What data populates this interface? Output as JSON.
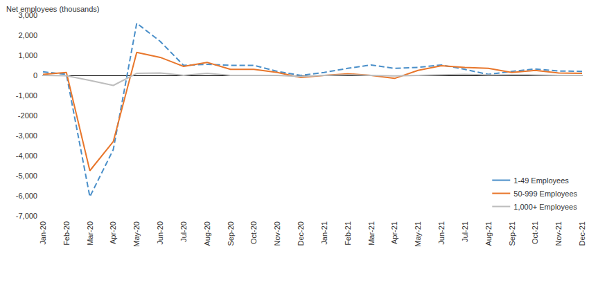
{
  "chart_data": {
    "type": "line",
    "y_label": "Net employees (thousands)",
    "categories": [
      "Jan-20",
      "Feb-20",
      "Mar-20",
      "Apr-20",
      "May-20",
      "Jun-20",
      "Jul-20",
      "Aug-20",
      "Sep-20",
      "Oct-20",
      "Nov-20",
      "Dec-20",
      "Jan-21",
      "Feb-21",
      "Mar-21",
      "Apr-21",
      "May-21",
      "Jun-21",
      "Jul-21",
      "Aug-21",
      "Sep-21",
      "Oct-21",
      "Nov-21",
      "Dec-21"
    ],
    "series": [
      {
        "name": "1-49 Employees",
        "color": "#4a8fc9",
        "line_style": "dashed",
        "marker": "none",
        "values": [
          180,
          50,
          -6050,
          -3700,
          2600,
          1700,
          500,
          550,
          500,
          500,
          200,
          0,
          150,
          350,
          520,
          350,
          400,
          520,
          300,
          50,
          200,
          320,
          220,
          200
        ]
      },
      {
        "name": "50-999 Employees",
        "color": "#e8762b",
        "line_style": "solid",
        "marker": "none",
        "values": [
          50,
          150,
          -4750,
          -3300,
          1150,
          900,
          450,
          650,
          300,
          300,
          150,
          -100,
          0,
          80,
          0,
          -150,
          250,
          480,
          400,
          350,
          150,
          250,
          120,
          100
        ]
      },
      {
        "name": "1,000+ Employees",
        "color": "#bdbdbd",
        "line_style": "solid",
        "marker": "none",
        "values": [
          0,
          -20,
          -250,
          -500,
          100,
          120,
          0,
          100,
          0,
          0,
          0,
          -50,
          0,
          30,
          0,
          -30,
          0,
          30,
          50,
          20,
          30,
          20,
          0,
          0
        ]
      }
    ],
    "ylim": [
      -7000,
      3000
    ],
    "yticks": [
      {
        "value": -7000,
        "label": "-7,000"
      },
      {
        "value": -6000,
        "label": "-6,000"
      },
      {
        "value": -5000,
        "label": "-5,000"
      },
      {
        "value": -4000,
        "label": "-4,000"
      },
      {
        "value": -3000,
        "label": "-3,000"
      },
      {
        "value": -2000,
        "label": "-2000"
      },
      {
        "value": -1000,
        "label": "-1,000"
      },
      0,
      {
        "value": 1000,
        "label": "1,000"
      },
      {
        "value": 2000,
        "label": "2,000"
      },
      {
        "value": 3000,
        "label": "3,000"
      }
    ],
    "grid": false,
    "legend": "lower right"
  }
}
